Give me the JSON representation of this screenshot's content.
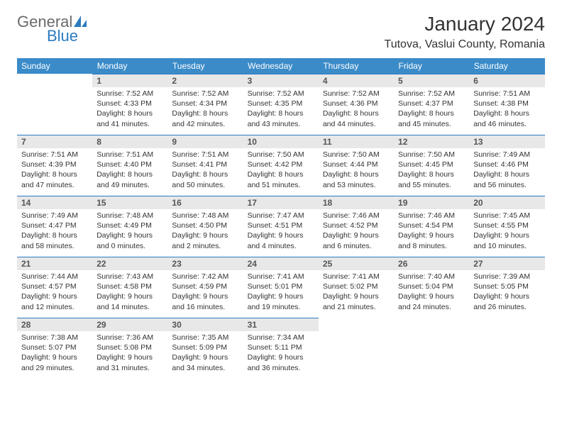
{
  "logo": {
    "word1": "General",
    "word2": "Blue"
  },
  "title": "January 2024",
  "location": "Tutova, Vaslui County, Romania",
  "headers": [
    "Sunday",
    "Monday",
    "Tuesday",
    "Wednesday",
    "Thursday",
    "Friday",
    "Saturday"
  ],
  "header_bg": "#3b8bc9",
  "header_fg": "#ffffff",
  "daynum_bg": "#e8e8e8",
  "rule_color": "#2b7bbf",
  "text_color": "#333333",
  "logo_gray": "#6b6b6b",
  "logo_blue": "#2b7bbf",
  "weeks": [
    [
      {
        "n": "",
        "sunrise": "",
        "sunset": "",
        "daylight": ""
      },
      {
        "n": "1",
        "sunrise": "Sunrise: 7:52 AM",
        "sunset": "Sunset: 4:33 PM",
        "daylight": "Daylight: 8 hours and 41 minutes."
      },
      {
        "n": "2",
        "sunrise": "Sunrise: 7:52 AM",
        "sunset": "Sunset: 4:34 PM",
        "daylight": "Daylight: 8 hours and 42 minutes."
      },
      {
        "n": "3",
        "sunrise": "Sunrise: 7:52 AM",
        "sunset": "Sunset: 4:35 PM",
        "daylight": "Daylight: 8 hours and 43 minutes."
      },
      {
        "n": "4",
        "sunrise": "Sunrise: 7:52 AM",
        "sunset": "Sunset: 4:36 PM",
        "daylight": "Daylight: 8 hours and 44 minutes."
      },
      {
        "n": "5",
        "sunrise": "Sunrise: 7:52 AM",
        "sunset": "Sunset: 4:37 PM",
        "daylight": "Daylight: 8 hours and 45 minutes."
      },
      {
        "n": "6",
        "sunrise": "Sunrise: 7:51 AM",
        "sunset": "Sunset: 4:38 PM",
        "daylight": "Daylight: 8 hours and 46 minutes."
      }
    ],
    [
      {
        "n": "7",
        "sunrise": "Sunrise: 7:51 AM",
        "sunset": "Sunset: 4:39 PM",
        "daylight": "Daylight: 8 hours and 47 minutes."
      },
      {
        "n": "8",
        "sunrise": "Sunrise: 7:51 AM",
        "sunset": "Sunset: 4:40 PM",
        "daylight": "Daylight: 8 hours and 49 minutes."
      },
      {
        "n": "9",
        "sunrise": "Sunrise: 7:51 AM",
        "sunset": "Sunset: 4:41 PM",
        "daylight": "Daylight: 8 hours and 50 minutes."
      },
      {
        "n": "10",
        "sunrise": "Sunrise: 7:50 AM",
        "sunset": "Sunset: 4:42 PM",
        "daylight": "Daylight: 8 hours and 51 minutes."
      },
      {
        "n": "11",
        "sunrise": "Sunrise: 7:50 AM",
        "sunset": "Sunset: 4:44 PM",
        "daylight": "Daylight: 8 hours and 53 minutes."
      },
      {
        "n": "12",
        "sunrise": "Sunrise: 7:50 AM",
        "sunset": "Sunset: 4:45 PM",
        "daylight": "Daylight: 8 hours and 55 minutes."
      },
      {
        "n": "13",
        "sunrise": "Sunrise: 7:49 AM",
        "sunset": "Sunset: 4:46 PM",
        "daylight": "Daylight: 8 hours and 56 minutes."
      }
    ],
    [
      {
        "n": "14",
        "sunrise": "Sunrise: 7:49 AM",
        "sunset": "Sunset: 4:47 PM",
        "daylight": "Daylight: 8 hours and 58 minutes."
      },
      {
        "n": "15",
        "sunrise": "Sunrise: 7:48 AM",
        "sunset": "Sunset: 4:49 PM",
        "daylight": "Daylight: 9 hours and 0 minutes."
      },
      {
        "n": "16",
        "sunrise": "Sunrise: 7:48 AM",
        "sunset": "Sunset: 4:50 PM",
        "daylight": "Daylight: 9 hours and 2 minutes."
      },
      {
        "n": "17",
        "sunrise": "Sunrise: 7:47 AM",
        "sunset": "Sunset: 4:51 PM",
        "daylight": "Daylight: 9 hours and 4 minutes."
      },
      {
        "n": "18",
        "sunrise": "Sunrise: 7:46 AM",
        "sunset": "Sunset: 4:52 PM",
        "daylight": "Daylight: 9 hours and 6 minutes."
      },
      {
        "n": "19",
        "sunrise": "Sunrise: 7:46 AM",
        "sunset": "Sunset: 4:54 PM",
        "daylight": "Daylight: 9 hours and 8 minutes."
      },
      {
        "n": "20",
        "sunrise": "Sunrise: 7:45 AM",
        "sunset": "Sunset: 4:55 PM",
        "daylight": "Daylight: 9 hours and 10 minutes."
      }
    ],
    [
      {
        "n": "21",
        "sunrise": "Sunrise: 7:44 AM",
        "sunset": "Sunset: 4:57 PM",
        "daylight": "Daylight: 9 hours and 12 minutes."
      },
      {
        "n": "22",
        "sunrise": "Sunrise: 7:43 AM",
        "sunset": "Sunset: 4:58 PM",
        "daylight": "Daylight: 9 hours and 14 minutes."
      },
      {
        "n": "23",
        "sunrise": "Sunrise: 7:42 AM",
        "sunset": "Sunset: 4:59 PM",
        "daylight": "Daylight: 9 hours and 16 minutes."
      },
      {
        "n": "24",
        "sunrise": "Sunrise: 7:41 AM",
        "sunset": "Sunset: 5:01 PM",
        "daylight": "Daylight: 9 hours and 19 minutes."
      },
      {
        "n": "25",
        "sunrise": "Sunrise: 7:41 AM",
        "sunset": "Sunset: 5:02 PM",
        "daylight": "Daylight: 9 hours and 21 minutes."
      },
      {
        "n": "26",
        "sunrise": "Sunrise: 7:40 AM",
        "sunset": "Sunset: 5:04 PM",
        "daylight": "Daylight: 9 hours and 24 minutes."
      },
      {
        "n": "27",
        "sunrise": "Sunrise: 7:39 AM",
        "sunset": "Sunset: 5:05 PM",
        "daylight": "Daylight: 9 hours and 26 minutes."
      }
    ],
    [
      {
        "n": "28",
        "sunrise": "Sunrise: 7:38 AM",
        "sunset": "Sunset: 5:07 PM",
        "daylight": "Daylight: 9 hours and 29 minutes."
      },
      {
        "n": "29",
        "sunrise": "Sunrise: 7:36 AM",
        "sunset": "Sunset: 5:08 PM",
        "daylight": "Daylight: 9 hours and 31 minutes."
      },
      {
        "n": "30",
        "sunrise": "Sunrise: 7:35 AM",
        "sunset": "Sunset: 5:09 PM",
        "daylight": "Daylight: 9 hours and 34 minutes."
      },
      {
        "n": "31",
        "sunrise": "Sunrise: 7:34 AM",
        "sunset": "Sunset: 5:11 PM",
        "daylight": "Daylight: 9 hours and 36 minutes."
      },
      {
        "n": "",
        "sunrise": "",
        "sunset": "",
        "daylight": ""
      },
      {
        "n": "",
        "sunrise": "",
        "sunset": "",
        "daylight": ""
      },
      {
        "n": "",
        "sunrise": "",
        "sunset": "",
        "daylight": ""
      }
    ]
  ]
}
